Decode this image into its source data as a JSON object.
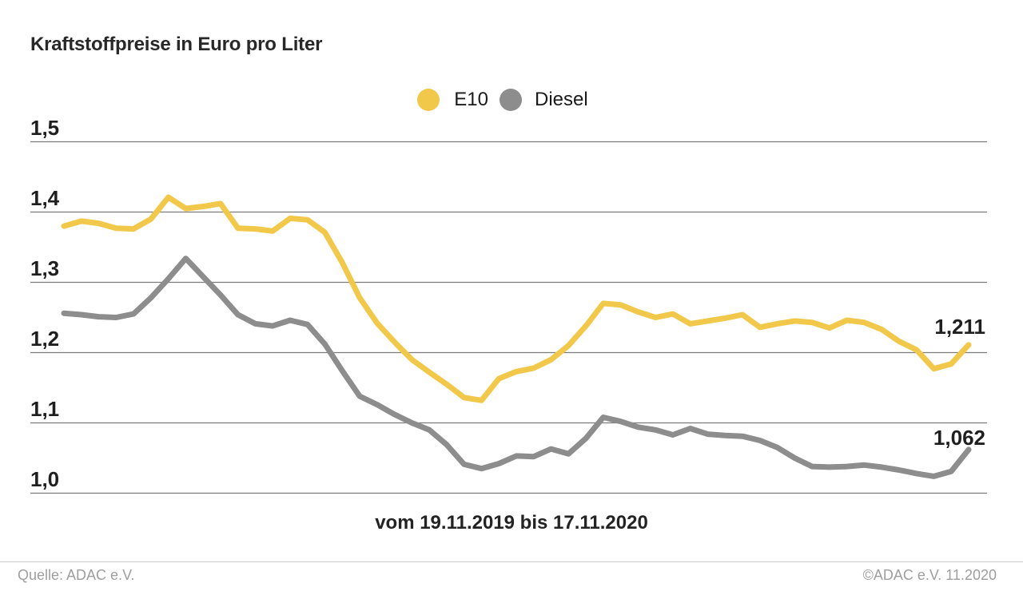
{
  "title": "Kraftstoffpreise in Euro pro Liter",
  "legend": {
    "e10": "E10",
    "diesel": "Diesel"
  },
  "caption": "vom 19.11.2019 bis 17.11.2020",
  "annotations": {
    "e10_end": "1,211",
    "diesel_end": "1,062"
  },
  "footer": {
    "left": "Quelle: ADAC e.V.",
    "right": "©ADAC e.V. 11.2020"
  },
  "colors": {
    "e10": "#F2C84B",
    "diesel": "#8D8D8D",
    "grid": "#7b7b7b",
    "text": "#1f1f1f",
    "footer_text": "#9e9e9e",
    "footer_line": "#cccccc"
  },
  "chart_data": {
    "type": "line",
    "title": "Kraftstoffpreise in Euro pro Liter",
    "x_caption": "vom 19.11.2019 bis 17.11.2020",
    "x_start_date": "19.11.2019",
    "x_end_date": "17.11.2020",
    "x_interval": "weekly",
    "ylabel": "Euro pro Liter",
    "ylim": [
      1.0,
      1.5
    ],
    "grid": true,
    "legend_position": "top-center",
    "yticks": [
      {
        "value": 1.5,
        "label": "1,5"
      },
      {
        "value": 1.4,
        "label": "1,4"
      },
      {
        "value": 1.3,
        "label": "1,3"
      },
      {
        "value": 1.2,
        "label": "1,2"
      },
      {
        "value": 1.1,
        "label": "1,1"
      },
      {
        "value": 1.0,
        "label": "1,0"
      }
    ],
    "series": [
      {
        "name": "E10",
        "color": "#F2C84B",
        "end_label": "1,211",
        "end_value": 1.211,
        "values": [
          1.38,
          1.387,
          1.384,
          1.377,
          1.376,
          1.39,
          1.421,
          1.405,
          1.408,
          1.412,
          1.377,
          1.376,
          1.373,
          1.391,
          1.389,
          1.371,
          1.328,
          1.278,
          1.242,
          1.215,
          1.19,
          1.172,
          1.155,
          1.136,
          1.132,
          1.163,
          1.173,
          1.178,
          1.19,
          1.21,
          1.238,
          1.27,
          1.268,
          1.258,
          1.25,
          1.255,
          1.241,
          1.245,
          1.249,
          1.254,
          1.236,
          1.241,
          1.245,
          1.243,
          1.235,
          1.246,
          1.243,
          1.233,
          1.216,
          1.204,
          1.177,
          1.184,
          1.211
        ]
      },
      {
        "name": "Diesel",
        "color": "#8D8D8D",
        "end_label": "1,062",
        "end_value": 1.062,
        "values": [
          1.256,
          1.254,
          1.251,
          1.25,
          1.255,
          1.278,
          1.305,
          1.334,
          1.308,
          1.282,
          1.254,
          1.241,
          1.238,
          1.246,
          1.24,
          1.212,
          1.174,
          1.138,
          1.126,
          1.112,
          1.1,
          1.09,
          1.069,
          1.041,
          1.035,
          1.042,
          1.053,
          1.052,
          1.063,
          1.056,
          1.078,
          1.108,
          1.102,
          1.094,
          1.09,
          1.083,
          1.092,
          1.084,
          1.082,
          1.081,
          1.075,
          1.065,
          1.05,
          1.038,
          1.037,
          1.038,
          1.04,
          1.037,
          1.033,
          1.028,
          1.024,
          1.031,
          1.062
        ]
      }
    ]
  }
}
